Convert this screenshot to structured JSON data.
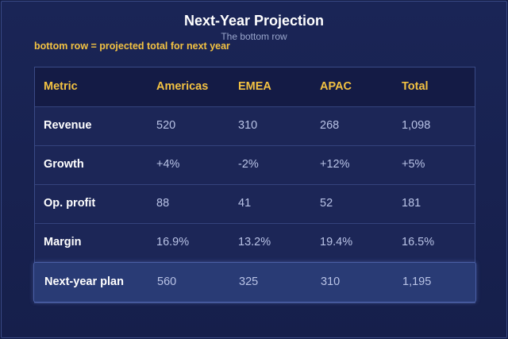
{
  "title": "Next-Year Projection",
  "subtitle": "The bottom row",
  "note": "bottom row = projected total for next year",
  "chart_data": {
    "type": "table",
    "columns": [
      "Metric",
      "Americas",
      "EMEA",
      "APAC",
      "Total"
    ],
    "rows": [
      [
        "Revenue",
        "520",
        "310",
        "268",
        "1,098"
      ],
      [
        "Growth",
        "+4%",
        "-2%",
        "+12%",
        "+5%"
      ],
      [
        "Op. profit",
        "88",
        "41",
        "52",
        "181"
      ],
      [
        "Margin",
        "16.9%",
        "13.2%",
        "19.4%",
        "16.5%"
      ],
      [
        "Next-year plan",
        "560",
        "325",
        "310",
        "1,195"
      ]
    ],
    "highlight_row": 4,
    "colors": {
      "header_text": "#f3c242",
      "highlight_row": "#293b75",
      "background": "#131c44"
    }
  }
}
